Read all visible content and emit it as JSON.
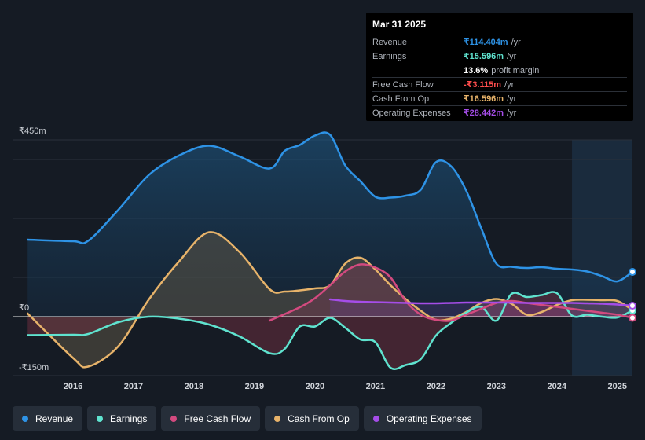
{
  "colors": {
    "revenue": "#2e93e6",
    "earnings": "#5fe3cf",
    "fcf": "#d34a7f",
    "cfo": "#e7b36a",
    "opex": "#a54de8",
    "fcf_negative": "#ff4d4d"
  },
  "tooltip": {
    "date": "Mar 31 2025",
    "rows": [
      {
        "label": "Revenue",
        "value": "₹114.404m",
        "unit": "/yr",
        "color": "#2e93e6"
      },
      {
        "label": "Earnings",
        "value": "₹15.596m",
        "unit": "/yr",
        "color": "#5fe3cf"
      },
      {
        "label": "",
        "value": "13.6%",
        "unit": "profit margin",
        "color": "#ffffff"
      },
      {
        "label": "Free Cash Flow",
        "value": "-₹3.115m",
        "unit": "/yr",
        "color": "#ff4d4d"
      },
      {
        "label": "Cash From Op",
        "value": "₹16.596m",
        "unit": "/yr",
        "color": "#e7b36a"
      },
      {
        "label": "Operating Expenses",
        "value": "₹28.442m",
        "unit": "/yr",
        "color": "#a54de8"
      }
    ]
  },
  "legend": [
    {
      "label": "Revenue",
      "color": "#2e93e6"
    },
    {
      "label": "Earnings",
      "color": "#5fe3cf"
    },
    {
      "label": "Free Cash Flow",
      "color": "#d34a7f"
    },
    {
      "label": "Cash From Op",
      "color": "#e7b36a"
    },
    {
      "label": "Operating Expenses",
      "color": "#a54de8"
    }
  ],
  "chart_data": {
    "type": "area",
    "unit": "₹m",
    "ylim": [
      -150,
      450
    ],
    "xlim": [
      2015.0,
      2025.25
    ],
    "y_tick_labels": [
      {
        "value": 450,
        "label": "₹450m"
      },
      {
        "value": 0,
        "label": "₹0"
      },
      {
        "value": -150,
        "label": "-₹150m"
      }
    ],
    "x_ticks": [
      2016,
      2017,
      2018,
      2019,
      2020,
      2021,
      2022,
      2023,
      2024,
      2025
    ],
    "x_tick_labels": [
      "2016",
      "2017",
      "2018",
      "2019",
      "2020",
      "2021",
      "2022",
      "2023",
      "2024",
      "2025"
    ],
    "forecast_start": 2024.25,
    "series": [
      {
        "name": "Revenue",
        "key": "revenue",
        "x": [
          2015.25,
          2016.0,
          2016.25,
          2016.75,
          2017.25,
          2017.75,
          2018.25,
          2018.75,
          2019.25,
          2019.5,
          2019.75,
          2020.0,
          2020.25,
          2020.5,
          2020.75,
          2021.0,
          2021.25,
          2021.5,
          2021.75,
          2022.0,
          2022.25,
          2022.5,
          2022.75,
          2023.0,
          2023.25,
          2023.5,
          2023.75,
          2024.0,
          2024.25,
          2024.5,
          2024.75,
          2025.0,
          2025.25
        ],
        "values": [
          196,
          192,
          193,
          272,
          360,
          410,
          435,
          408,
          377,
          422,
          437,
          461,
          463,
          385,
          345,
          305,
          303,
          308,
          323,
          393,
          383,
          321,
          225,
          135,
          127,
          124,
          126,
          122,
          120,
          115,
          103,
          90,
          114
        ]
      },
      {
        "name": "Earnings",
        "key": "earnings",
        "x": [
          2015.25,
          2016.0,
          2016.25,
          2016.75,
          2017.25,
          2017.75,
          2018.25,
          2018.75,
          2019.25,
          2019.5,
          2019.75,
          2020.0,
          2020.25,
          2020.5,
          2020.75,
          2021.0,
          2021.25,
          2021.5,
          2021.75,
          2022.0,
          2022.25,
          2022.5,
          2022.75,
          2023.0,
          2023.25,
          2023.5,
          2023.75,
          2024.0,
          2024.25,
          2024.5,
          2024.75,
          2025.0,
          2025.25
        ],
        "values": [
          -47,
          -46,
          -44,
          -14,
          0,
          -5,
          -20,
          -50,
          -93,
          -82,
          -25,
          -25,
          -3,
          -28,
          -58,
          -65,
          -130,
          -123,
          -108,
          -48,
          -16,
          10,
          25,
          -10,
          58,
          50,
          55,
          60,
          3,
          5,
          0,
          -2,
          16
        ]
      },
      {
        "name": "Free Cash Flow",
        "key": "fcf",
        "x": [
          2019.25,
          2019.75,
          2020.0,
          2020.25,
          2020.5,
          2020.75,
          2021.0,
          2021.25,
          2021.5,
          2021.75,
          2022.0,
          2022.25,
          2022.5,
          2022.75,
          2023.0,
          2023.25,
          2023.5,
          2023.75,
          2024.0,
          2024.25,
          2024.5,
          2024.75,
          2025.0,
          2025.25
        ],
        "values": [
          -10,
          24,
          47,
          80,
          115,
          133,
          125,
          100,
          40,
          5,
          -8,
          -10,
          5,
          20,
          35,
          40,
          35,
          30,
          25,
          20,
          15,
          10,
          5,
          -3
        ]
      },
      {
        "name": "Cash From Op",
        "key": "cfo",
        "x": [
          2015.25,
          2016.0,
          2016.25,
          2016.75,
          2017.25,
          2017.75,
          2018.25,
          2018.75,
          2019.25,
          2019.5,
          2019.75,
          2020.0,
          2020.25,
          2020.5,
          2020.75,
          2021.0,
          2021.25,
          2021.5,
          2021.75,
          2022.0,
          2022.25,
          2022.5,
          2022.75,
          2023.0,
          2023.25,
          2023.5,
          2023.75,
          2024.0,
          2024.25,
          2024.5,
          2024.75,
          2025.0,
          2025.25
        ],
        "values": [
          8,
          -105,
          -127,
          -75,
          43,
          140,
          215,
          165,
          70,
          64,
          67,
          72,
          80,
          135,
          150,
          120,
          80,
          45,
          15,
          -8,
          -5,
          12,
          35,
          45,
          33,
          5,
          12,
          30,
          42,
          43,
          42,
          40,
          17
        ]
      },
      {
        "name": "Operating Expenses",
        "key": "opex",
        "x": [
          2020.25,
          2020.5,
          2020.75,
          2021.0,
          2021.25,
          2021.5,
          2021.75,
          2022.0,
          2022.25,
          2022.5,
          2022.75,
          2023.0,
          2023.25,
          2023.5,
          2023.75,
          2024.0,
          2024.25,
          2024.5,
          2024.75,
          2025.0,
          2025.25
        ],
        "values": [
          44,
          40,
          38,
          37,
          36,
          35,
          34,
          34,
          35,
          36,
          36,
          36,
          36,
          35,
          35,
          35,
          35,
          34,
          33,
          31,
          28
        ]
      }
    ]
  }
}
